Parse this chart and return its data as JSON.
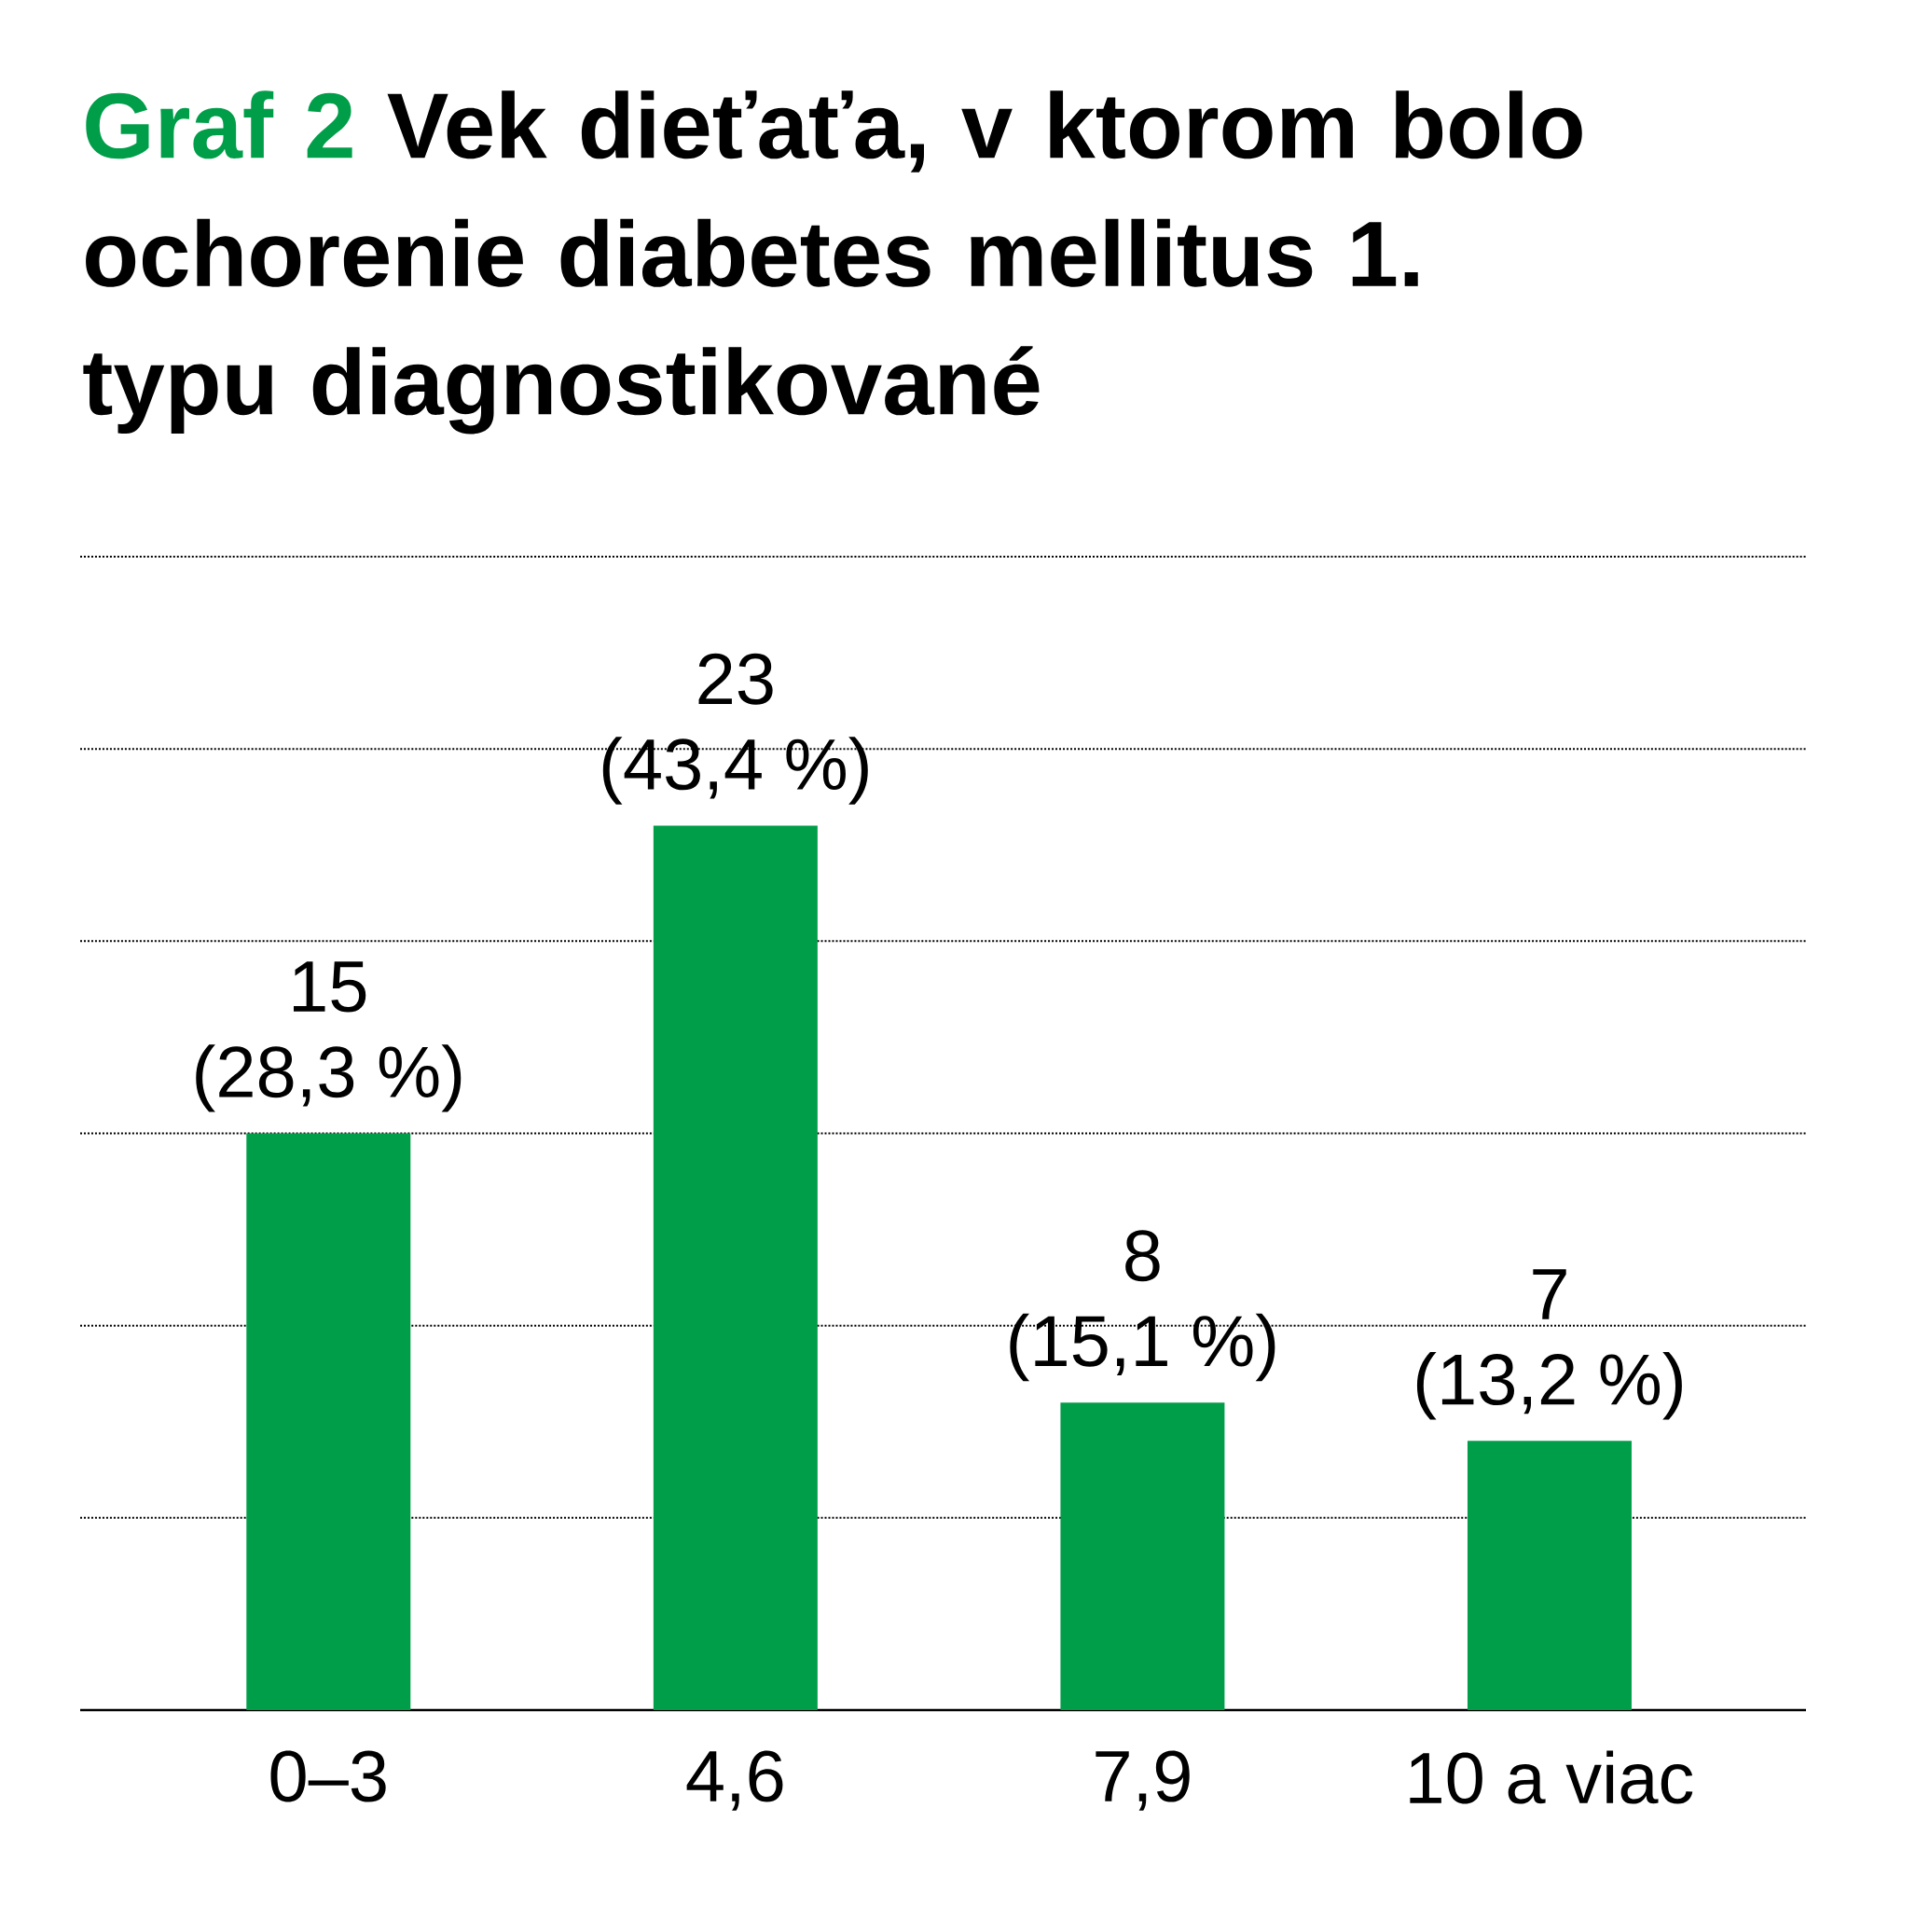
{
  "chart_data": {
    "type": "bar",
    "title": "Graf 2",
    "subtitle": "Vek dieťaťa, v ktorom bolo ochorenie diabetes mellitus 1. typu diagnostikované",
    "categories": [
      "0–3",
      "4,6",
      "7,9",
      "10 a viac"
    ],
    "values": [
      15,
      23,
      8,
      7
    ],
    "value_labels": [
      "15 (28,3 %)",
      "23 (43,4 %)",
      "8 (15,1 %)",
      "7 (13,2 %)"
    ],
    "color": "#009e49",
    "ylim": [
      0,
      30
    ],
    "yticks": [
      {
        "value": 5,
        "label": null
      },
      {
        "value": 10,
        "label": null
      },
      {
        "value": 15,
        "label": null
      },
      {
        "value": 20,
        "label": null
      },
      {
        "value": 25,
        "label": null
      },
      {
        "value": 30,
        "label": null
      }
    ],
    "grid": "y"
  }
}
